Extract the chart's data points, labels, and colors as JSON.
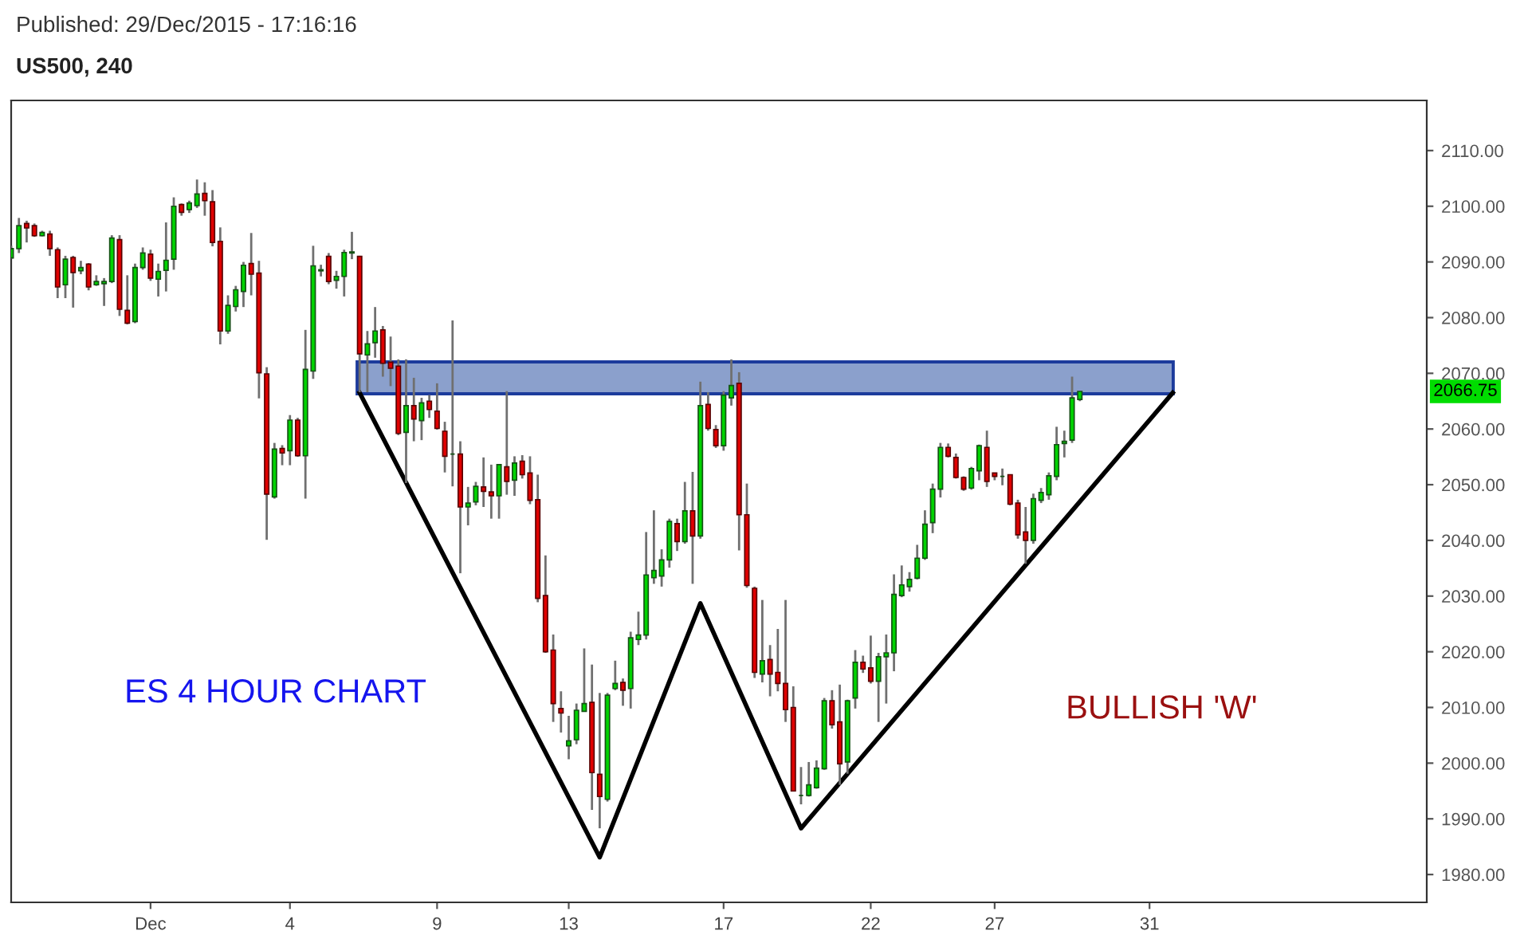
{
  "chart_data": {
    "type": "candlestick",
    "title": "Published: 29/Dec/2015 - 17:16:16",
    "subtitle": "US500, 240",
    "categories": [
      null,
      null,
      null,
      null,
      null,
      null,
      null,
      null,
      null,
      null,
      null,
      null,
      null,
      null,
      null,
      null,
      null,
      null,
      "Dec",
      null,
      null,
      null,
      null,
      null,
      null,
      null,
      null,
      null,
      null,
      null,
      null,
      null,
      null,
      null,
      null,
      null,
      "4",
      null,
      null,
      null,
      null,
      null,
      null,
      null,
      null,
      null,
      null,
      null,
      null,
      null,
      null,
      null,
      null,
      null,
      null,
      "9",
      null,
      null,
      null,
      null,
      null,
      null,
      null,
      null,
      null,
      null,
      null,
      null,
      null,
      null,
      null,
      null,
      "13",
      null,
      null,
      null,
      null,
      null,
      null,
      null,
      null,
      null,
      null,
      null,
      null,
      null,
      null,
      null,
      null,
      null,
      null,
      null,
      "17",
      null,
      null,
      null,
      null,
      null,
      null,
      null,
      null,
      null,
      null,
      null,
      null,
      null,
      null,
      null,
      null,
      null,
      null,
      "22",
      null,
      null,
      null,
      null,
      null,
      null,
      null,
      null,
      null,
      null,
      null,
      null,
      null,
      null,
      null,
      "27",
      null,
      null,
      null,
      null,
      null,
      null,
      null,
      null,
      null,
      null,
      null,
      null,
      null,
      null,
      null,
      null,
      null,
      null,
      null,
      "31",
      null,
      null,
      null,
      null,
      null,
      null,
      null,
      null,
      null,
      null,
      null,
      null,
      null,
      null,
      null,
      null,
      null,
      null,
      null,
      null,
      null,
      null,
      null,
      null,
      null,
      null,
      null,
      null,
      null,
      null,
      null,
      null,
      null,
      null,
      null
    ],
    "ohlc": [
      [
        2090.7,
        2092.9,
        2090.5,
        2092.4
      ],
      [
        2092.4,
        2097.9,
        2091.6,
        2096.5
      ],
      [
        2096.9,
        2097.4,
        2093.5,
        2096.1
      ],
      [
        2096.5,
        2096.9,
        2094.5,
        2094.7
      ],
      [
        2094.7,
        2095.6,
        2094.6,
        2095.3
      ],
      [
        2095.0,
        2095.6,
        2091.1,
        2092.4
      ],
      [
        2092.2,
        2092.6,
        2083.5,
        2085.5
      ],
      [
        2085.9,
        2091.1,
        2083.5,
        2090.5
      ],
      [
        2090.8,
        2091.1,
        2081.8,
        2088.1
      ],
      [
        2088.4,
        2090.2,
        2087.8,
        2089.0
      ],
      [
        2089.6,
        2089.8,
        2084.9,
        2085.5
      ],
      [
        2085.9,
        2087.6,
        2085.7,
        2086.5
      ],
      [
        2086.1,
        2087.1,
        2082.1,
        2086.5
      ],
      [
        2086.5,
        2094.8,
        2086.2,
        2094.3
      ],
      [
        2094.0,
        2094.8,
        2080.3,
        2081.5
      ],
      [
        2081.3,
        2087.6,
        2078.8,
        2079.0
      ],
      [
        2079.3,
        2089.7,
        2079.0,
        2089.0
      ],
      [
        2089.0,
        2092.6,
        2088.6,
        2091.6
      ],
      [
        2091.4,
        2092.2,
        2086.6,
        2087.1
      ],
      [
        2086.9,
        2089.7,
        2083.8,
        2088.3
      ],
      [
        2088.5,
        2097.1,
        2084.7,
        2090.3
      ],
      [
        2090.5,
        2101.6,
        2088.6,
        2100.0
      ],
      [
        2100.3,
        2100.5,
        2098.3,
        2098.9
      ],
      [
        2099.4,
        2101.0,
        2098.8,
        2100.6
      ],
      [
        2100.1,
        2104.8,
        2099.7,
        2102.2
      ],
      [
        2102.3,
        2104.3,
        2098.3,
        2101.0
      ],
      [
        2100.8,
        2102.9,
        2092.8,
        2093.5
      ],
      [
        2093.7,
        2096.2,
        2075.2,
        2077.6
      ],
      [
        2077.6,
        2084.0,
        2077.1,
        2082.2
      ],
      [
        2082.0,
        2085.7,
        2081.1,
        2085.0
      ],
      [
        2084.7,
        2090.0,
        2081.9,
        2089.4
      ],
      [
        2089.7,
        2095.2,
        2084.0,
        2087.8
      ],
      [
        2088.0,
        2090.2,
        2065.5,
        2070.1
      ],
      [
        2069.9,
        2071.1,
        2040.1,
        2048.3
      ],
      [
        2047.8,
        2057.5,
        2047.5,
        2056.4
      ],
      [
        2056.5,
        2057.1,
        2053.5,
        2055.7
      ],
      [
        2056.1,
        2062.5,
        2053.5,
        2061.6
      ],
      [
        2061.6,
        2062.0,
        2055.0,
        2055.2
      ],
      [
        2055.2,
        2077.8,
        2047.5,
        2070.7
      ],
      [
        2070.4,
        2092.9,
        2069.0,
        2089.3
      ],
      [
        2088.4,
        2089.5,
        2087.4,
        2088.6
      ],
      [
        2091.0,
        2091.6,
        2086.0,
        2086.5
      ],
      [
        2086.7,
        2088.4,
        2085.2,
        2087.4
      ],
      [
        2087.4,
        2092.2,
        2083.8,
        2091.7
      ],
      [
        2091.6,
        2095.4,
        2090.5,
        2091.8
      ],
      [
        2091.0,
        2091.1,
        2066.6,
        2073.5
      ],
      [
        2073.3,
        2077.6,
        2066.6,
        2075.3
      ],
      [
        2075.5,
        2081.9,
        2072.8,
        2077.6
      ],
      [
        2077.8,
        2078.5,
        2069.4,
        2071.8
      ],
      [
        2072.0,
        2076.6,
        2067.7,
        2070.9
      ],
      [
        2071.3,
        2072.5,
        2058.9,
        2059.2
      ],
      [
        2059.4,
        2072.5,
        2050.3,
        2064.2
      ],
      [
        2064.2,
        2069.2,
        2057.8,
        2061.8
      ],
      [
        2061.5,
        2065.6,
        2058.0,
        2064.7
      ],
      [
        2065.0,
        2066.1,
        2062.0,
        2063.5
      ],
      [
        2063.2,
        2068.2,
        2059.9,
        2060.1
      ],
      [
        2059.6,
        2061.3,
        2052.2,
        2055.1
      ],
      [
        2055.5,
        2079.5,
        2049.7,
        2055.5
      ],
      [
        2055.5,
        2057.8,
        2034.1,
        2046.0
      ],
      [
        2046.0,
        2049.6,
        2042.7,
        2046.7
      ],
      [
        2046.9,
        2050.5,
        2046.3,
        2049.7
      ],
      [
        2049.6,
        2054.9,
        2046.0,
        2048.8
      ],
      [
        2048.7,
        2053.6,
        2043.9,
        2048.0
      ],
      [
        2048.0,
        2053.7,
        2043.9,
        2053.6
      ],
      [
        2053.2,
        2066.8,
        2048.2,
        2050.6
      ],
      [
        2050.8,
        2055.1,
        2048.0,
        2053.9
      ],
      [
        2054.2,
        2055.3,
        2051.1,
        2051.8
      ],
      [
        2052.1,
        2055.1,
        2046.5,
        2047.2
      ],
      [
        2047.3,
        2051.8,
        2028.9,
        2029.6
      ],
      [
        2030.1,
        2037.3,
        2019.8,
        2020.0
      ],
      [
        2020.3,
        2023.1,
        2007.4,
        2010.7
      ],
      [
        2009.8,
        2012.9,
        2005.5,
        2009.0
      ],
      [
        2003.1,
        2008.5,
        2000.7,
        2004.0
      ],
      [
        2004.2,
        2010.7,
        2003.4,
        2009.5
      ],
      [
        2009.3,
        2020.6,
        2009.3,
        2010.7
      ],
      [
        2010.9,
        2017.7,
        1991.6,
        1998.3
      ],
      [
        1998.0,
        2012.6,
        1988.3,
        1994.0
      ],
      [
        1993.5,
        2012.6,
        1993.1,
        2012.2
      ],
      [
        2013.4,
        2018.4,
        2013.1,
        2014.3
      ],
      [
        2014.5,
        2015.2,
        2010.3,
        2013.1
      ],
      [
        2013.4,
        2023.6,
        2009.8,
        2022.5
      ],
      [
        2022.2,
        2027.2,
        2021.2,
        2023.0
      ],
      [
        2023.0,
        2041.5,
        2022.2,
        2033.8
      ],
      [
        2033.3,
        2045.4,
        2032.2,
        2034.6
      ],
      [
        2033.6,
        2038.4,
        2031.7,
        2036.5
      ],
      [
        2036.5,
        2043.9,
        2035.1,
        2043.4
      ],
      [
        2043.0,
        2043.9,
        2038.1,
        2039.8
      ],
      [
        2039.8,
        2050.5,
        2039.4,
        2045.3
      ],
      [
        2045.3,
        2052.3,
        2032.2,
        2040.8
      ],
      [
        2040.8,
        2068.5,
        2040.3,
        2064.2
      ],
      [
        2064.4,
        2066.6,
        2059.7,
        2060.1
      ],
      [
        2059.9,
        2060.7,
        2056.6,
        2057.0
      ],
      [
        2057.0,
        2066.8,
        2056.1,
        2066.1
      ],
      [
        2065.6,
        2072.5,
        2064.2,
        2067.8
      ],
      [
        2068.2,
        2070.2,
        2038.2,
        2044.6
      ],
      [
        2044.6,
        2050.2,
        2031.5,
        2031.9
      ],
      [
        2031.4,
        2031.7,
        2015.3,
        2016.3
      ],
      [
        2016.0,
        2029.3,
        2014.5,
        2018.4
      ],
      [
        2018.6,
        2021.2,
        2012.0,
        2016.0
      ],
      [
        2016.3,
        2024.1,
        2012.9,
        2014.3
      ],
      [
        2014.3,
        2029.3,
        2007.4,
        2009.6
      ],
      [
        2010.0,
        2013.8,
        1995.0,
        1995.0
      ],
      [
        1994.2,
        1999.3,
        1992.6,
        1994.2
      ],
      [
        1994.2,
        2000.2,
        1994.0,
        1996.1
      ],
      [
        1995.6,
        2000.5,
        1995.4,
        1999.1
      ],
      [
        1999.0,
        2011.7,
        1998.8,
        2011.2
      ],
      [
        2011.2,
        2013.1,
        2006.2,
        2006.9
      ],
      [
        2007.4,
        2014.1,
        1996.1,
        1999.9
      ],
      [
        2000.2,
        2011.4,
        1998.1,
        2011.2
      ],
      [
        2011.7,
        2020.3,
        2009.8,
        2018.1
      ],
      [
        2018.1,
        2019.3,
        2016.2,
        2016.9
      ],
      [
        2017.1,
        2022.9,
        2014.3,
        2014.7
      ],
      [
        2014.7,
        2019.8,
        2007.4,
        2019.1
      ],
      [
        2019.1,
        2023.1,
        2010.7,
        2019.8
      ],
      [
        2019.8,
        2033.9,
        2016.5,
        2030.3
      ],
      [
        2030.1,
        2035.5,
        2029.8,
        2032.0
      ],
      [
        2031.7,
        2034.3,
        2030.8,
        2033.0
      ],
      [
        2033.2,
        2039.2,
        2033.0,
        2036.8
      ],
      [
        2036.8,
        2045.4,
        2036.5,
        2042.9
      ],
      [
        2043.2,
        2050.2,
        2041.3,
        2049.2
      ],
      [
        2049.2,
        2057.5,
        2047.7,
        2056.7
      ],
      [
        2056.7,
        2057.4,
        2054.9,
        2055.1
      ],
      [
        2054.9,
        2055.6,
        2051.1,
        2051.3
      ],
      [
        2051.3,
        2051.5,
        2048.9,
        2049.2
      ],
      [
        2049.4,
        2053.2,
        2049.1,
        2052.9
      ],
      [
        2052.5,
        2057.2,
        2050.8,
        2057.0
      ],
      [
        2056.7,
        2059.7,
        2049.6,
        2050.6
      ],
      [
        2052.1,
        2052.1,
        2050.8,
        2051.5
      ],
      [
        2051.5,
        2052.9,
        2049.9,
        2051.5
      ],
      [
        2051.8,
        2051.8,
        2046.3,
        2046.5
      ],
      [
        2046.7,
        2047.3,
        2040.3,
        2041.0
      ],
      [
        2041.5,
        2046.0,
        2035.8,
        2040.0
      ],
      [
        2040.0,
        2048.4,
        2039.4,
        2047.5
      ],
      [
        2047.2,
        2049.4,
        2046.7,
        2048.6
      ],
      [
        2048.2,
        2052.2,
        2047.3,
        2051.6
      ],
      [
        2051.5,
        2060.4,
        2050.8,
        2057.2
      ],
      [
        2057.4,
        2059.7,
        2054.9,
        2057.8
      ],
      [
        2058.0,
        2069.4,
        2057.5,
        2065.6
      ],
      [
        2065.3,
        2066.8,
        2065.0,
        2066.75
      ],
      null,
      null,
      null,
      null,
      null,
      null,
      null,
      null,
      null,
      null,
      null,
      null,
      null,
      null,
      null,
      null,
      null,
      null,
      null,
      null,
      null,
      null,
      null,
      null,
      null,
      null,
      null,
      null,
      null,
      null,
      null,
      null,
      null,
      null,
      null,
      null,
      null,
      null,
      null,
      null,
      null,
      null,
      null,
      null
    ],
    "series": [
      {
        "type": "line",
        "color": "#000000",
        "values": [
          null,
          null,
          null,
          null,
          null,
          null,
          null,
          null,
          null,
          null,
          null,
          null,
          null,
          null,
          null,
          null,
          null,
          null,
          null,
          null,
          null,
          null,
          null,
          null,
          null,
          null,
          null,
          null,
          null,
          null,
          null,
          null,
          null,
          null,
          null,
          null,
          null,
          null,
          null,
          null,
          null,
          null,
          null,
          null,
          null,
          2066.5,
          null,
          null,
          null,
          null,
          null,
          null,
          null,
          null,
          null,
          null,
          null,
          null,
          null,
          null,
          null,
          null,
          null,
          null,
          null,
          null,
          null,
          null,
          null,
          null,
          null,
          null,
          null,
          null,
          null,
          null,
          1983.1,
          null,
          null,
          null,
          null,
          null,
          null,
          null,
          null,
          null,
          null,
          null,
          null,
          2028.7,
          null,
          null,
          null,
          null,
          null,
          null,
          null,
          null,
          null,
          null,
          null,
          null,
          1988.3,
          null,
          null,
          null,
          null,
          null,
          null,
          null,
          null,
          null,
          null,
          null,
          null,
          null,
          null,
          null,
          null,
          null,
          null,
          null,
          null,
          null,
          null,
          null,
          null,
          null,
          null,
          null,
          null,
          null,
          null,
          null,
          null,
          null,
          null,
          null,
          null,
          null,
          null,
          null,
          null,
          null,
          null,
          null,
          null,
          null,
          null,
          null,
          2066.5,
          null,
          null,
          null,
          null,
          null,
          null,
          null,
          null,
          null,
          null,
          null,
          null,
          null,
          null,
          null,
          null,
          null,
          null,
          null,
          null,
          null,
          null,
          null,
          null,
          null,
          null,
          null,
          null,
          null,
          null,
          null,
          null
        ]
      }
    ],
    "ylim": [
      1975,
      2119
    ],
    "yticks": [
      {
        "value": 1980,
        "label": "1980.00"
      },
      {
        "value": 1990,
        "label": "1990.00"
      },
      {
        "value": 2000,
        "label": "2000.00"
      },
      {
        "value": 2010,
        "label": "2010.00"
      },
      {
        "value": 2020,
        "label": "2020.00"
      },
      {
        "value": 2030,
        "label": "2030.00"
      },
      {
        "value": 2040,
        "label": "2040.00"
      },
      {
        "value": 2050,
        "label": "2050.00"
      },
      {
        "value": 2060,
        "label": "2060.00"
      },
      {
        "value": 2070,
        "label": "2070.00"
      },
      {
        "value": 2080,
        "label": "2080.00"
      },
      {
        "value": 2090,
        "label": "2090.00"
      },
      {
        "value": 2100,
        "label": "2100.00"
      },
      {
        "value": 2110,
        "label": "2110.00"
      }
    ],
    "annotations": [
      "2066.75",
      "ES 4 HOUR CHART",
      "BULLISH 'W'"
    ]
  }
}
